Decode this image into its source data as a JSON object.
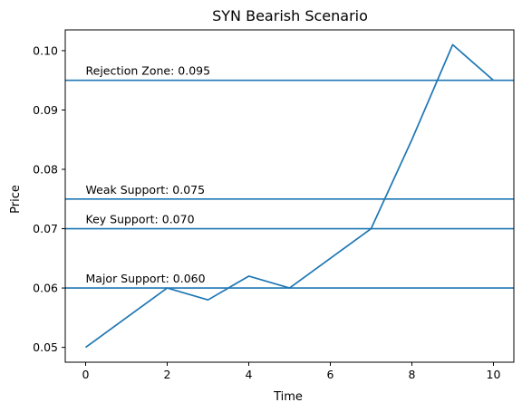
{
  "chart_data": {
    "type": "line",
    "title": "SYN Bearish Scenario",
    "xlabel": "Time",
    "ylabel": "Price",
    "xlim": [
      -0.5,
      10.5
    ],
    "ylim": [
      0.0475,
      0.1035
    ],
    "x_ticks": [
      0,
      2,
      4,
      6,
      8,
      10
    ],
    "x_tick_labels": [
      "0",
      "2",
      "4",
      "6",
      "8",
      "10"
    ],
    "y_ticks": [
      0.05,
      0.06,
      0.07,
      0.08,
      0.09,
      0.1
    ],
    "y_tick_labels": [
      "0.05",
      "0.06",
      "0.07",
      "0.08",
      "0.09",
      "0.10"
    ],
    "series": [
      {
        "x": [
          0,
          1,
          2,
          3,
          4,
          5,
          6,
          7,
          8,
          9,
          10
        ],
        "values": [
          0.05,
          0.055,
          0.06,
          0.058,
          0.062,
          0.06,
          0.065,
          0.07,
          0.085,
          0.101,
          0.095
        ],
        "color": "#1f77b4"
      }
    ],
    "hlines": [
      {
        "y": 0.095,
        "label": "Rejection Zone: 0.095",
        "color": "#1f77b4"
      },
      {
        "y": 0.075,
        "label": "Weak Support: 0.075",
        "color": "#1f77b4"
      },
      {
        "y": 0.07,
        "label": "Key Support: 0.070",
        "color": "#1f77b4"
      },
      {
        "y": 0.06,
        "label": "Major Support: 0.060",
        "color": "#1f77b4"
      }
    ],
    "grid": false
  }
}
